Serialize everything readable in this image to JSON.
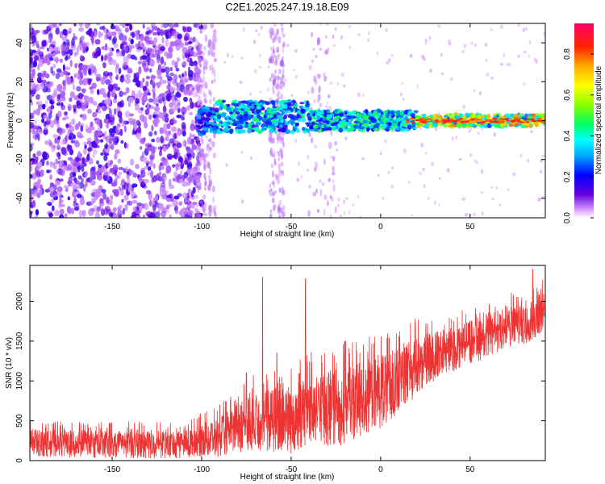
{
  "title": "C2E1.2025.247.19.18.E09",
  "chart_data": [
    {
      "type": "heatmap",
      "name": "spectrogram",
      "xlabel": "Height of straight line (km)",
      "ylabel": "Frequency (Hz)",
      "xlim": [
        -196,
        92
      ],
      "ylim": [
        -50,
        50
      ],
      "xticks": [
        -150,
        -100,
        -50,
        0,
        50
      ],
      "yticks": [
        -40,
        -20,
        0,
        20,
        40
      ],
      "colorbar": {
        "label": "Normalized spectral amplitude",
        "range": [
          0,
          0.95
        ],
        "ticks": [
          0.0,
          0.2,
          0.4,
          0.6,
          0.8
        ]
      },
      "bands": [
        {
          "x_range": [
            -196,
            -102
          ],
          "freq_range": [
            -50,
            50
          ],
          "amplitude": 0.15,
          "note": "broadband noise"
        },
        {
          "x_range": [
            -102,
            -92
          ],
          "freq_range": [
            -8,
            5
          ],
          "amplitude": 0.25
        },
        {
          "x_range": [
            -92,
            -40
          ],
          "freq_range": [
            -6,
            10
          ],
          "amplitude": 0.3
        },
        {
          "x_range": [
            -40,
            20
          ],
          "freq_range": [
            -5,
            6
          ],
          "amplitude": 0.3
        },
        {
          "x_range": [
            20,
            92
          ],
          "freq_range": [
            -3,
            3
          ],
          "amplitude": 0.9,
          "note": "strong line near 0 Hz"
        }
      ]
    },
    {
      "type": "line",
      "name": "snr",
      "xlabel": "Height of straight line (km)",
      "ylabel": "SNR (10 * v/v)",
      "xlim": [
        -196,
        92
      ],
      "ylim": [
        0,
        2450
      ],
      "xticks": [
        -150,
        -100,
        -50,
        0,
        50
      ],
      "yticks": [
        0,
        500,
        1000,
        1500,
        2000
      ],
      "color": "#ee3333",
      "envelope": {
        "x": [
          -196,
          -150,
          -110,
          -100,
          -90,
          -80,
          -70,
          -60,
          -50,
          -40,
          -30,
          -20,
          -10,
          0,
          10,
          20,
          30,
          40,
          50,
          60,
          70,
          80,
          92
        ],
        "low": [
          50,
          30,
          20,
          50,
          50,
          100,
          130,
          100,
          80,
          200,
          150,
          200,
          300,
          400,
          600,
          800,
          1000,
          1100,
          1200,
          1300,
          1400,
          1450,
          1600
        ],
        "high": [
          500,
          500,
          480,
          600,
          700,
          950,
          1100,
          1200,
          1250,
          1350,
          1450,
          1500,
          1550,
          1600,
          1700,
          1800,
          1850,
          1850,
          1950,
          2050,
          2100,
          2150,
          2300
        ]
      },
      "peaks": [
        {
          "x": -75,
          "y": 1100
        },
        {
          "x": -66,
          "y": 2300
        },
        {
          "x": -58,
          "y": 1350
        },
        {
          "x": -42,
          "y": 2280
        },
        {
          "x": -20,
          "y": 1500
        },
        {
          "x": 85,
          "y": 2400
        }
      ]
    }
  ]
}
